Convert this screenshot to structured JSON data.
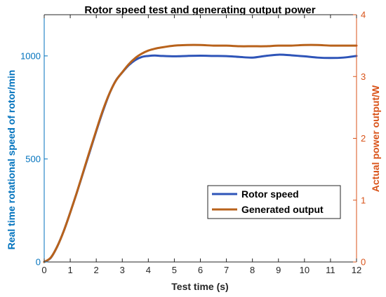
{
  "chart_data": {
    "type": "line",
    "title": "Rotor speed test and generating output power",
    "xlabel": "Test time (s)",
    "ylabel_left": "Real time rotational speed of rotor/min",
    "ylabel_right": "Actual power output/W",
    "xlim": [
      0,
      12
    ],
    "ylim_left": [
      0,
      1200
    ],
    "ylim_right": [
      0,
      4
    ],
    "xticks": [
      0,
      1,
      2,
      3,
      4,
      5,
      6,
      7,
      8,
      9,
      10,
      11,
      12
    ],
    "yticks_left": [
      0,
      500,
      1000
    ],
    "yticks_right": [
      0,
      1,
      2,
      3,
      4
    ],
    "legend_position": "lower-right",
    "grid": false,
    "colors": {
      "left_axis": "#0072BD",
      "right_axis": "#D95319",
      "rotor_speed": "#2E54B8",
      "generated_output": "#B8621B",
      "axes": "#262626"
    },
    "series": [
      {
        "name": "Rotor speed",
        "axis": "left",
        "x": [
          0,
          0.25,
          0.5,
          0.75,
          1,
          1.25,
          1.5,
          1.75,
          2,
          2.25,
          2.5,
          2.75,
          3,
          3.25,
          3.5,
          3.75,
          4,
          4.25,
          4.5,
          5,
          5.5,
          6,
          6.5,
          7,
          7.5,
          8,
          8.5,
          9,
          9.5,
          10,
          10.5,
          11,
          11.5,
          12
        ],
        "y": [
          0,
          20,
          75,
          150,
          240,
          335,
          435,
          535,
          635,
          730,
          815,
          880,
          920,
          955,
          980,
          995,
          1000,
          1002,
          1000,
          998,
          1000,
          1001,
          1000,
          999,
          995,
          992,
          1000,
          1006,
          1003,
          998,
          992,
          990,
          992,
          1000
        ]
      },
      {
        "name": "Generated output",
        "axis": "right",
        "x": [
          0,
          0.25,
          0.5,
          0.75,
          1,
          1.25,
          1.5,
          1.75,
          2,
          2.25,
          2.5,
          2.75,
          3,
          3.25,
          3.5,
          3.75,
          4,
          4.25,
          4.5,
          5,
          5.5,
          6,
          6.5,
          7,
          7.5,
          8,
          8.5,
          9,
          9.5,
          10,
          10.5,
          11,
          11.5,
          12
        ],
        "y": [
          0,
          0.07,
          0.25,
          0.5,
          0.8,
          1.12,
          1.46,
          1.8,
          2.13,
          2.45,
          2.72,
          2.93,
          3.07,
          3.2,
          3.3,
          3.37,
          3.42,
          3.45,
          3.47,
          3.5,
          3.51,
          3.51,
          3.5,
          3.5,
          3.49,
          3.49,
          3.49,
          3.5,
          3.5,
          3.51,
          3.51,
          3.5,
          3.5,
          3.5
        ]
      }
    ]
  }
}
